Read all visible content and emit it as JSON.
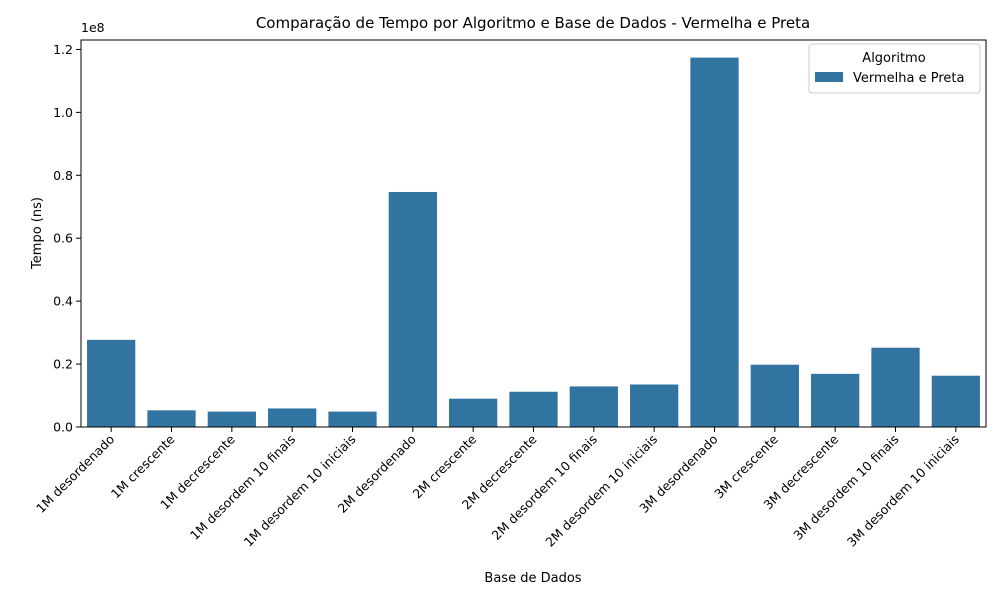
{
  "chart_data": {
    "type": "bar",
    "title": "Comparação de Tempo por Algoritmo e Base de Dados - Vermelha e Preta",
    "xlabel": "Base de Dados",
    "ylabel": "Tempo (ns)",
    "y_offset_text": "1e8",
    "ylim": [
      0,
      123000000
    ],
    "yticks": [
      0,
      20000000,
      40000000,
      60000000,
      80000000,
      100000000,
      120000000
    ],
    "ytick_labels": [
      "0.0",
      "0.2",
      "0.4",
      "0.6",
      "0.8",
      "1.0",
      "1.2"
    ],
    "categories": [
      "1M desordenado",
      "1M crescente",
      "1M decrescente",
      "1M desordem 10 finais",
      "1M desordem 10 iniciais",
      "2M desordenado",
      "2M crescente",
      "2M decrescente",
      "2M desordem 10 finais",
      "2M desordem 10 iniciais",
      "3M desordenado",
      "3M crescente",
      "3M decrescente",
      "3M desordem 10 finais",
      "3M desordem 10 iniciais"
    ],
    "series": [
      {
        "name": "Vermelha e Preta",
        "color": "#3274a1",
        "values": [
          27700000,
          5300000,
          4900000,
          5900000,
          4900000,
          74700000,
          9000000,
          11200000,
          12900000,
          13500000,
          117400000,
          19800000,
          16900000,
          25200000,
          16300000
        ]
      }
    ],
    "legend": {
      "title": "Algoritmo",
      "placement": "top-right"
    },
    "grid": false
  }
}
